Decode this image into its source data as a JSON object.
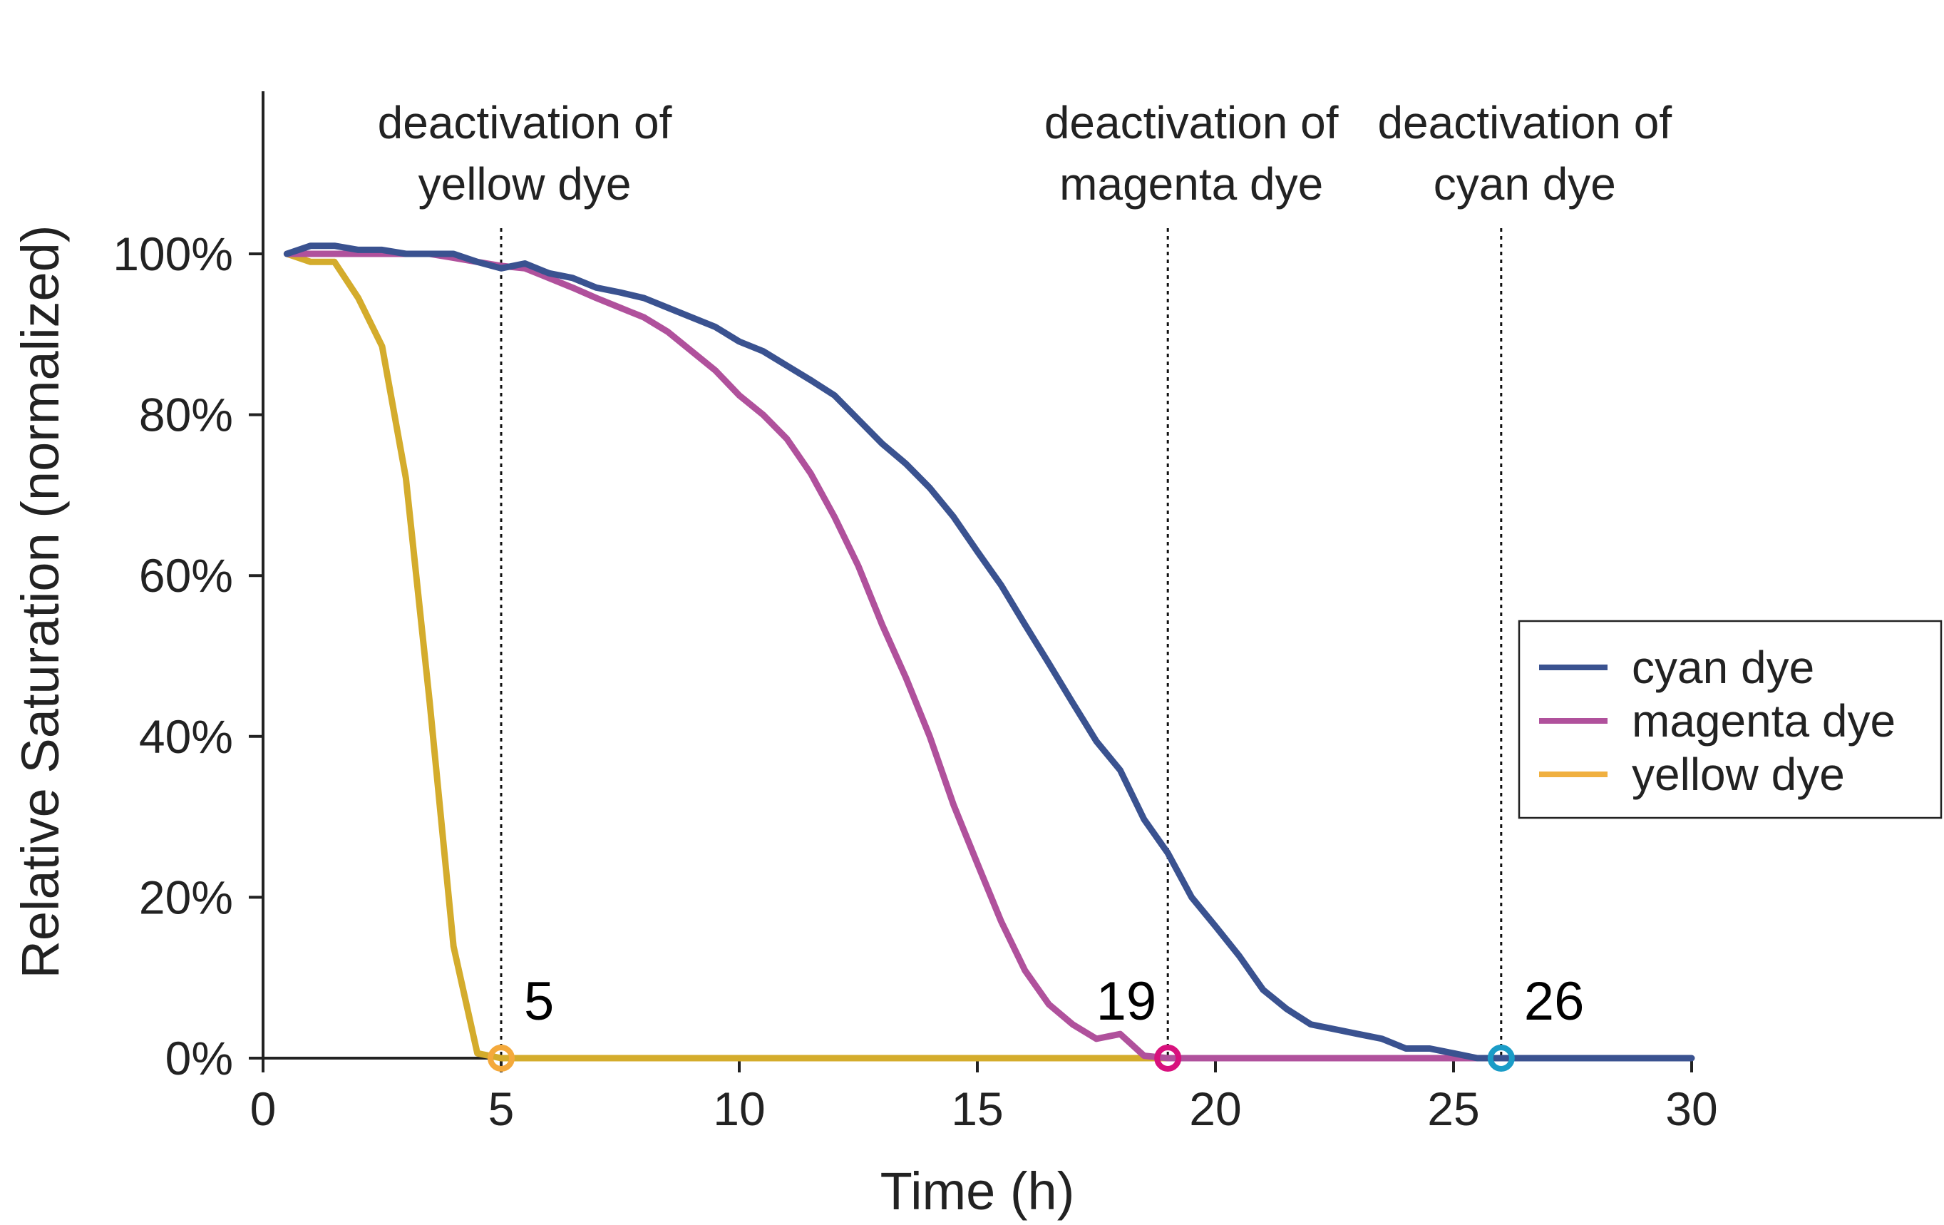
{
  "chart_data": {
    "type": "line",
    "xlabel": "Time (h)",
    "ylabel": "Relative Saturation (normalized)",
    "xlim": [
      0,
      30
    ],
    "ylim": [
      0,
      1.2
    ],
    "x_ticks": [
      {
        "value": 0,
        "label": "0"
      },
      {
        "value": 5,
        "label": "5"
      },
      {
        "value": 10,
        "label": "10"
      },
      {
        "value": 15,
        "label": "15"
      },
      {
        "value": 20,
        "label": "20"
      },
      {
        "value": 25,
        "label": "25"
      },
      {
        "value": 30,
        "label": "30"
      }
    ],
    "y_ticks": [
      {
        "value": 0,
        "label": "0%"
      },
      {
        "value": 0.2,
        "label": "20%"
      },
      {
        "value": 0.4,
        "label": "40%"
      },
      {
        "value": 0.6,
        "label": "60%"
      },
      {
        "value": 0.8,
        "label": "80%"
      },
      {
        "value": 1.0,
        "label": "100%"
      }
    ],
    "grid": false,
    "legend_position": "right",
    "series": [
      {
        "name": "cyan dye",
        "color": "#3a5290",
        "x": [
          0.5,
          1,
          1.5,
          2,
          2.5,
          3,
          3.5,
          4,
          4.5,
          5,
          5.5,
          6,
          6.5,
          7,
          7.5,
          8,
          8.5,
          9,
          9.5,
          10,
          10.5,
          11,
          11.5,
          12,
          12.5,
          13,
          13.5,
          14,
          14.5,
          15,
          15.5,
          16,
          16.5,
          17,
          17.5,
          18,
          18.5,
          19,
          19.5,
          20,
          20.5,
          21,
          21.5,
          22,
          22.5,
          23,
          23.5,
          24,
          24.5,
          25,
          25.5,
          26,
          26.5,
          27,
          27.5,
          28,
          28.5,
          29,
          29.5,
          30
        ],
        "y": [
          1.0,
          1.01,
          1.01,
          1.005,
          1.005,
          1.0,
          1.0,
          1.0,
          0.99,
          0.982,
          0.988,
          0.976,
          0.97,
          0.958,
          0.952,
          0.945,
          0.933,
          0.921,
          0.909,
          0.891,
          0.879,
          0.861,
          0.843,
          0.824,
          0.794,
          0.764,
          0.739,
          0.709,
          0.673,
          0.63,
          0.588,
          0.539,
          0.491,
          0.442,
          0.394,
          0.358,
          0.297,
          0.255,
          0.2,
          0.164,
          0.127,
          0.085,
          0.061,
          0.042,
          0.036,
          0.03,
          0.024,
          0.012,
          0.012,
          0.006,
          0.0,
          0.0,
          0.0,
          0.0,
          0.0,
          0.0,
          0.0,
          0.0,
          0.0,
          0.0
        ]
      },
      {
        "name": "magenta dye",
        "color": "#b0519c",
        "x": [
          0.5,
          1,
          1.5,
          2,
          2.5,
          3,
          3.5,
          4,
          4.5,
          5,
          5.5,
          6,
          6.5,
          7,
          7.5,
          8,
          8.5,
          9,
          9.5,
          10,
          10.5,
          11,
          11.5,
          12,
          12.5,
          13,
          13.5,
          14,
          14.5,
          15,
          15.5,
          16,
          16.5,
          17,
          17.5,
          18,
          18.5,
          19,
          20,
          21,
          22,
          23,
          24,
          25,
          26
        ],
        "y": [
          1.0,
          1.0,
          1.0,
          1.0,
          1.0,
          1.0,
          1.0,
          0.995,
          0.99,
          0.985,
          0.982,
          0.97,
          0.958,
          0.945,
          0.933,
          0.921,
          0.903,
          0.879,
          0.855,
          0.824,
          0.8,
          0.77,
          0.727,
          0.673,
          0.612,
          0.539,
          0.473,
          0.4,
          0.315,
          0.242,
          0.17,
          0.109,
          0.067,
          0.042,
          0.024,
          0.03,
          0.003,
          0.0,
          0.0,
          0.0,
          0.0,
          0.0,
          0.0,
          0.0,
          0.0
        ]
      },
      {
        "name": "yellow dye",
        "color": "#d4ac2c",
        "x": [
          0.5,
          1,
          1.5,
          2,
          2.5,
          3,
          3.5,
          4,
          4.5,
          5,
          10,
          15,
          19
        ],
        "y": [
          1.0,
          0.99,
          0.99,
          0.945,
          0.885,
          0.721,
          0.442,
          0.139,
          0.006,
          0.0,
          0.0,
          0.0,
          0.0
        ]
      }
    ],
    "markers": [
      {
        "series": "yellow dye",
        "x": 5,
        "y": 0,
        "color": "#f4a93b"
      },
      {
        "series": "magenta dye",
        "x": 19,
        "y": 0,
        "color": "#d8117d"
      },
      {
        "series": "cyan dye",
        "x": 26,
        "y": 0,
        "color": "#1a9cc7"
      }
    ],
    "annotations": [
      {
        "x": 5,
        "line1": "deactivation of",
        "line2": "yellow dye",
        "value": "5"
      },
      {
        "x": 19,
        "line1": "deactivation of",
        "line2": "magenta dye",
        "value": "19"
      },
      {
        "x": 26,
        "line1": "deactivation of",
        "line2": "cyan dye",
        "value": "26"
      }
    ],
    "legend": [
      {
        "label": "cyan dye",
        "color": "#3a5290"
      },
      {
        "label": "magenta dye",
        "color": "#b0519c"
      },
      {
        "label": "yellow dye",
        "color": "#f0b040"
      }
    ]
  }
}
